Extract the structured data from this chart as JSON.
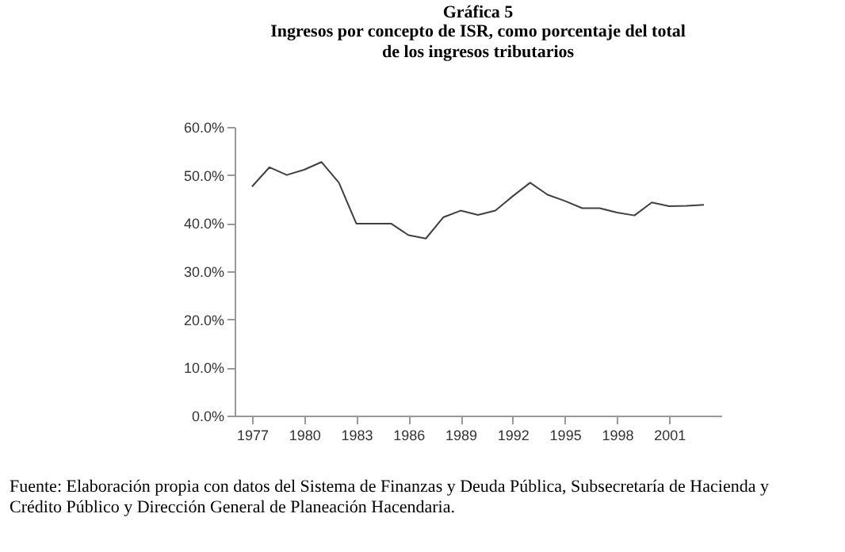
{
  "chart_data": {
    "type": "line",
    "title": "Gráfica 5",
    "subtitle": "Ingresos por concepto de ISR, como porcentaje del total\nde los ingresos tributarios",
    "x": [
      1977,
      1978,
      1979,
      1980,
      1981,
      1982,
      1983,
      1984,
      1985,
      1986,
      1987,
      1988,
      1989,
      1990,
      1991,
      1992,
      1993,
      1994,
      1995,
      1996,
      1997,
      1998,
      1999,
      2000,
      2001,
      2002,
      2003
    ],
    "series": [
      {
        "color": "#404040",
        "values": [
          47.6,
          51.6,
          50.0,
          51.1,
          52.7,
          48.4,
          39.9,
          39.9,
          39.9,
          37.5,
          36.8,
          41.2,
          42.6,
          41.7,
          42.6,
          45.6,
          48.4,
          45.9,
          44.6,
          43.1,
          43.1,
          42.2,
          41.6,
          44.3,
          43.5,
          43.6,
          43.8
        ]
      }
    ],
    "xlim": [
      1976,
      2004
    ],
    "xticks": [
      1977,
      1980,
      1983,
      1986,
      1989,
      1992,
      1995,
      1998,
      2001
    ],
    "ylim": [
      0,
      60
    ],
    "yticks": [
      {
        "value": 0,
        "label": "0.0%"
      },
      {
        "value": 10,
        "label": "10.0%"
      },
      {
        "value": 20,
        "label": "20.0%"
      },
      {
        "value": 30,
        "label": "30.0%"
      },
      {
        "value": 40,
        "label": "40.0%"
      },
      {
        "value": 50,
        "label": "50.0%"
      },
      {
        "value": 60,
        "label": "60.0%"
      }
    ],
    "grid": false,
    "marker": "none",
    "line_style": "solid",
    "annotations": [
      "Fuente: Elaboración propia con datos del Sistema de Finanzas y Deuda Pública, Subsecretaría de Hacienda y\n              Crédito Público y Dirección General de Planeación Hacendaria."
    ]
  }
}
